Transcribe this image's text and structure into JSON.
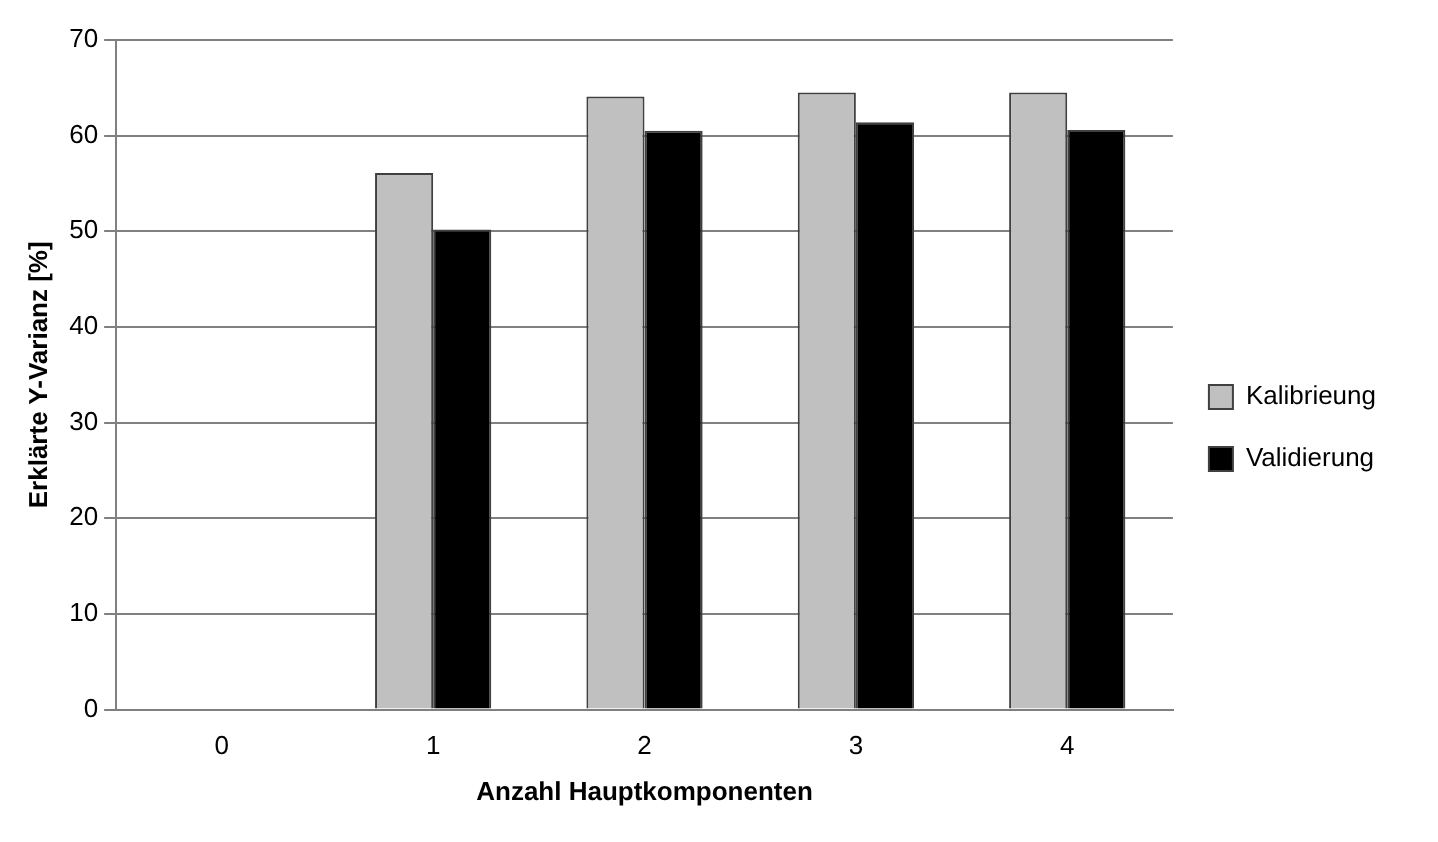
{
  "chart_data": {
    "type": "bar",
    "xlabel": "Anzahl Hauptkomponenten",
    "ylabel": "Erklärte Y-Varianz [%]",
    "categories": [
      "0",
      "1",
      "2",
      "3",
      "4"
    ],
    "series": [
      {
        "name": "Kalibrieung",
        "color": "#c0c0c0",
        "values": [
          0,
          56.1,
          64.1,
          64.5,
          64.5
        ]
      },
      {
        "name": "Validierung",
        "color": "#000000",
        "values": [
          0,
          50.2,
          60.5,
          61.4,
          60.6
        ]
      }
    ],
    "ylim": [
      0,
      70
    ],
    "yticks": [
      0,
      10,
      20,
      30,
      40,
      50,
      60,
      70
    ],
    "grid": "y",
    "legend": "right"
  }
}
